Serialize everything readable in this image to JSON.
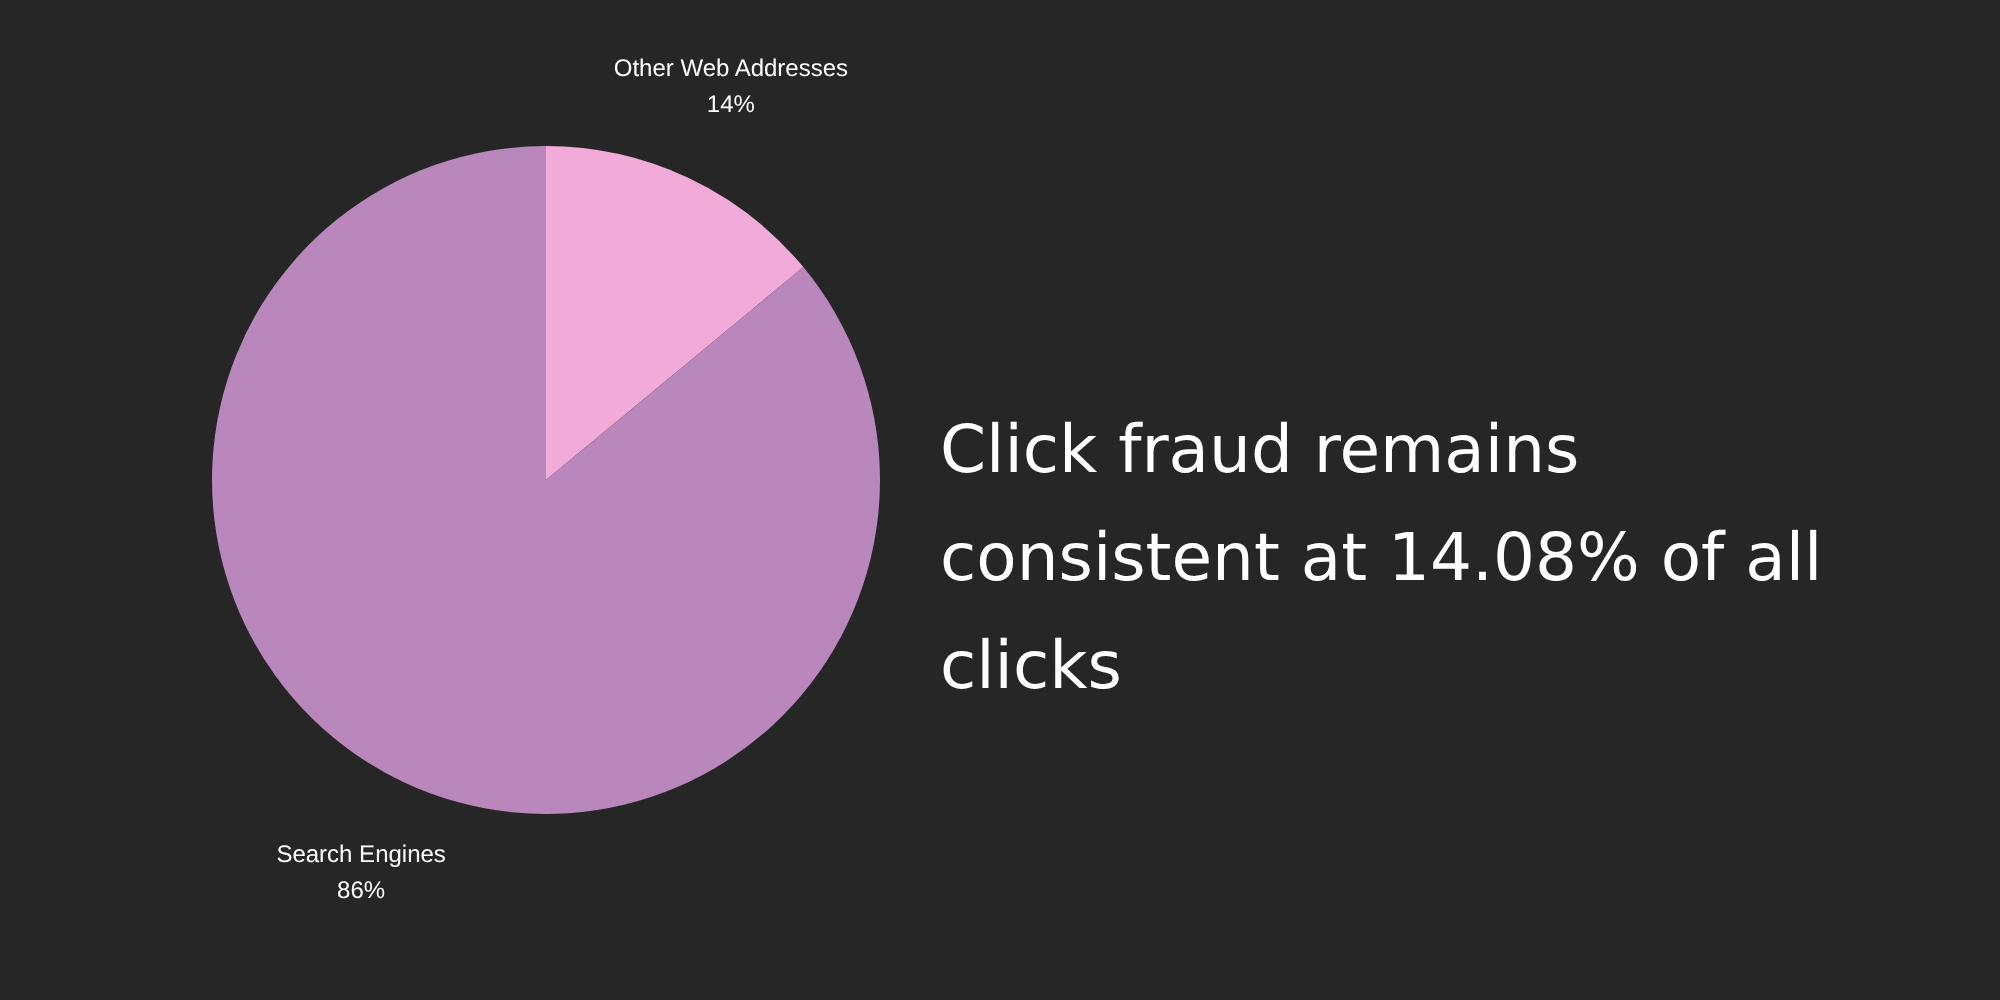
{
  "chart_data": {
    "type": "pie",
    "title": "Click fraud remains consistent at 14.08% of all clicks",
    "categories": [
      "Other Web Addresses",
      "Search Engines"
    ],
    "values": [
      14,
      86
    ],
    "colors": [
      "#f2aad8",
      "#b987bc"
    ],
    "value_labels": [
      "14%",
      "86%"
    ],
    "legend": false
  }
}
